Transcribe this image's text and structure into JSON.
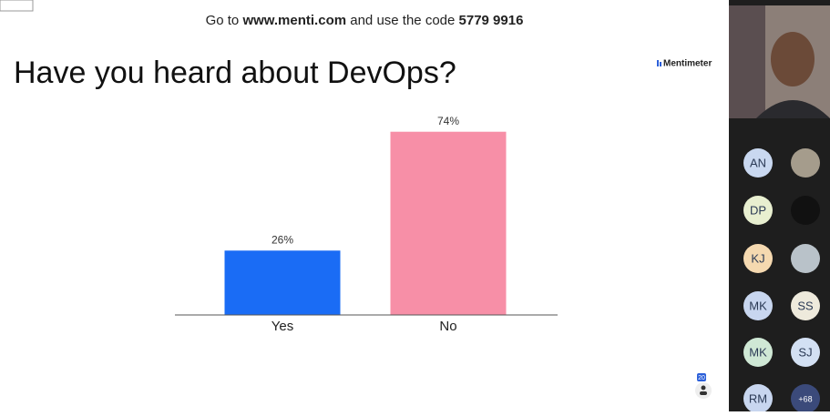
{
  "header": {
    "prefix": "Go to",
    "site": "www.menti.com",
    "middle": "and use the code",
    "code": "5779 9916"
  },
  "brand": "Mentimeter",
  "chart_data": {
    "type": "bar",
    "title": "Have you heard about DevOps?",
    "categories": [
      "Yes",
      "No"
    ],
    "values": [
      26,
      74
    ],
    "value_labels": [
      "26%",
      "74%"
    ],
    "colors": [
      "#1a6cf5",
      "#f78fa7"
    ],
    "ylim": [
      0,
      100
    ]
  },
  "participants": [
    "AN",
    "DP",
    "KJ",
    "MK",
    "SS",
    "MK",
    "SJ",
    "RM"
  ],
  "more": "+68",
  "raised_count": "20"
}
